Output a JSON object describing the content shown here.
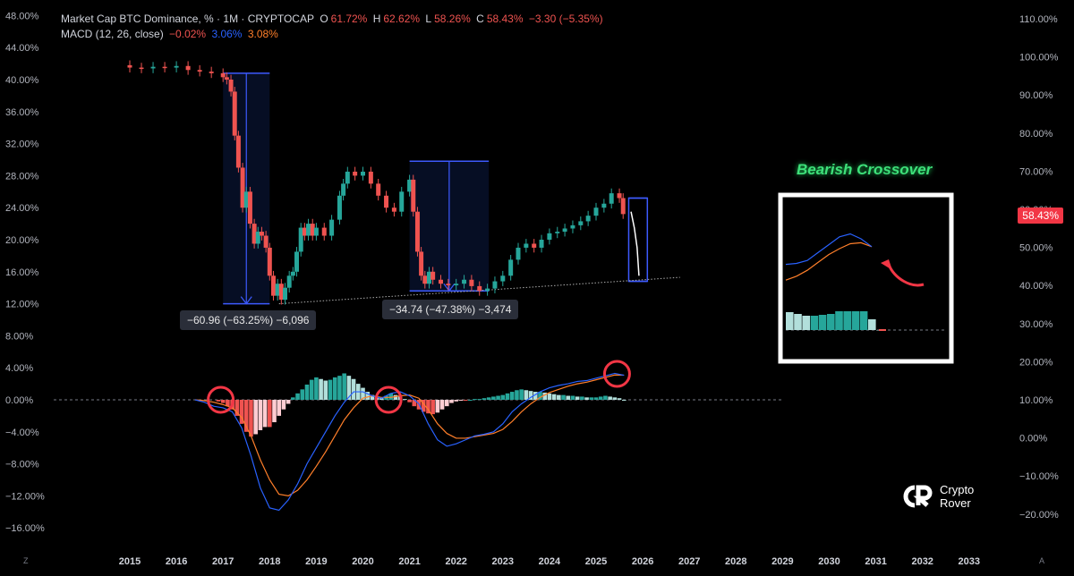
{
  "header": {
    "line1": {
      "title": "Market Cap BTC Dominance, % · 1M · CRYPTOCAP",
      "o_label": "O",
      "o_value": "61.72%",
      "h_label": "H",
      "h_value": "62.62%",
      "l_label": "L",
      "l_value": "58.26%",
      "c_label": "C",
      "c_value": "58.43%",
      "change": "−3.30 (−5.35%)"
    },
    "line2": {
      "title": "MACD (12, 26, close)",
      "v1": "−0.02%",
      "v2": "3.06%",
      "v3": "3.08%"
    }
  },
  "price_tag": "58.43%",
  "measure_labels": {
    "first": "−60.96 (−63.25%) −6,096",
    "second": "−34.74 (−47.38%) −3,474"
  },
  "annotation": "Bearish Crossover",
  "brand": {
    "line1": "Crypto",
    "line2": "Rover"
  },
  "corner_left": "Z",
  "corner_right": "A",
  "colors": {
    "up": "#26a69a",
    "down": "#ef5350",
    "macd": "#2962ff",
    "signal": "#ff7f2a",
    "hist_pos_strong": "#26a69a",
    "hist_pos_weak": "#b2dfdb",
    "hist_neg_strong": "#ef5350",
    "hist_neg_weak": "#ffcdd2",
    "box": "#3d5afe",
    "circle": "#f23645",
    "bearish": "#3ee07a"
  },
  "chart_data": {
    "type": "line",
    "x_ticks": [
      "2015",
      "2016",
      "2017",
      "2018",
      "2019",
      "2020",
      "2021",
      "2022",
      "2023",
      "2024",
      "2025",
      "2026",
      "2027",
      "2028",
      "2029",
      "2030",
      "2031",
      "2032",
      "2033"
    ],
    "left_axis_ticks": [
      "48.00%",
      "44.00%",
      "40.00%",
      "36.00%",
      "32.00%",
      "28.00%",
      "24.00%",
      "20.00%",
      "16.00%",
      "12.00%",
      "8.00%",
      "4.00%",
      "0.00%",
      "−4.00%",
      "−8.00%",
      "−12.00%",
      "−16.00%"
    ],
    "left_axis_values": [
      48,
      44,
      40,
      36,
      32,
      28,
      24,
      20,
      16,
      12,
      8,
      4,
      0,
      -4,
      -8,
      -12,
      -16
    ],
    "right_axis_ticks": [
      "110.00%",
      "100.00%",
      "90.00%",
      "80.00%",
      "70.00%",
      "60.00%",
      "50.00%",
      "40.00%",
      "30.00%",
      "20.00%",
      "10.00%",
      "0.00%",
      "−10.00%",
      "−20.00%"
    ],
    "right_axis_values": [
      110,
      100,
      90,
      80,
      70,
      60,
      50,
      40,
      30,
      20,
      10,
      0,
      -10,
      -20
    ],
    "dominance": {
      "name": "Market Cap BTC Dominance",
      "x": [
        2014.75,
        2015.0,
        2015.25,
        2015.5,
        2015.75,
        2016.0,
        2016.25,
        2016.5,
        2016.75,
        2017.0,
        2017.08,
        2017.17,
        2017.25,
        2017.33,
        2017.42,
        2017.5,
        2017.58,
        2017.67,
        2017.75,
        2017.83,
        2017.92,
        2018.0,
        2018.08,
        2018.17,
        2018.25,
        2018.33,
        2018.42,
        2018.5,
        2018.58,
        2018.67,
        2018.75,
        2018.83,
        2018.92,
        2019.0,
        2019.17,
        2019.33,
        2019.5,
        2019.58,
        2019.67,
        2019.83,
        2020.0,
        2020.17,
        2020.33,
        2020.5,
        2020.67,
        2020.83,
        2021.0,
        2021.08,
        2021.17,
        2021.25,
        2021.33,
        2021.42,
        2021.5,
        2021.67,
        2021.83,
        2022.0,
        2022.17,
        2022.33,
        2022.5,
        2022.67,
        2022.83,
        2023.0,
        2023.17,
        2023.33,
        2023.5,
        2023.67,
        2023.83,
        2024.0,
        2024.17,
        2024.33,
        2024.5,
        2024.67,
        2024.83,
        2025.0,
        2025.17,
        2025.33,
        2025.5,
        2025.58
      ],
      "values": [
        41.8,
        41.5,
        41.4,
        41.6,
        41.5,
        41.7,
        41.2,
        41.0,
        40.8,
        40.3,
        40.0,
        38.5,
        33.0,
        29.0,
        24.0,
        26.0,
        22.0,
        19.5,
        21.0,
        20.5,
        19.0,
        15.5,
        13.0,
        14.5,
        12.5,
        14.0,
        15.5,
        16.0,
        18.5,
        21.5,
        20.5,
        22.0,
        20.5,
        21.5,
        20.5,
        22.5,
        25.5,
        27.0,
        28.5,
        28.0,
        28.5,
        27.0,
        25.5,
        24.0,
        23.5,
        26.0,
        27.5,
        23.5,
        18.5,
        15.5,
        14.5,
        16.0,
        15.0,
        14.5,
        14.3,
        14.5,
        15.0,
        14.2,
        13.6,
        13.9,
        14.8,
        15.5,
        17.5,
        19.0,
        19.5,
        19.0,
        20.0,
        20.8,
        21.0,
        21.4,
        21.8,
        22.3,
        23.0,
        24.0,
        24.5,
        25.8,
        25.2,
        23.2
      ]
    },
    "projection": {
      "x": [
        2025.75,
        2025.82,
        2025.88,
        2025.92
      ],
      "values": [
        23.5,
        21.5,
        19.0,
        15.5
      ]
    },
    "trend_line": {
      "x": [
        2018.2,
        2026.8
      ],
      "values": [
        12.0,
        15.3
      ]
    },
    "measures": [
      {
        "x_start": 2017.0,
        "x_end": 2018.0,
        "top": 40.8,
        "bottom": 12.0
      },
      {
        "x_start": 2021.0,
        "x_end": 2022.7,
        "top": 29.8,
        "bottom": 13.6
      },
      {
        "x_start": 2025.7,
        "x_end": 2026.1,
        "top": 25.2,
        "bottom": 14.8
      }
    ],
    "macd": {
      "name": "MACD",
      "x": [
        2016.4,
        2016.6,
        2016.8,
        2017.0,
        2017.2,
        2017.4,
        2017.6,
        2017.8,
        2018.0,
        2018.2,
        2018.4,
        2018.6,
        2018.8,
        2019.0,
        2019.2,
        2019.4,
        2019.6,
        2019.8,
        2020.0,
        2020.2,
        2020.4,
        2020.6,
        2020.8,
        2021.0,
        2021.2,
        2021.4,
        2021.6,
        2021.8,
        2022.0,
        2022.2,
        2022.4,
        2022.6,
        2022.8,
        2023.0,
        2023.2,
        2023.4,
        2023.6,
        2023.8,
        2024.0,
        2024.2,
        2024.4,
        2024.6,
        2024.8,
        2025.0,
        2025.2,
        2025.4,
        2025.6
      ],
      "values": [
        0.0,
        -0.3,
        -0.8,
        -1.0,
        -1.5,
        -3.5,
        -7.0,
        -11.0,
        -13.5,
        -13.8,
        -12.5,
        -10.5,
        -8.0,
        -6.0,
        -4.0,
        -2.0,
        -0.3,
        1.0,
        1.0,
        0.5,
        0.2,
        0.8,
        1.0,
        0.5,
        -0.5,
        -3.0,
        -5.0,
        -5.8,
        -5.5,
        -5.0,
        -4.5,
        -4.3,
        -4.0,
        -3.0,
        -1.5,
        -0.5,
        0.3,
        1.0,
        1.5,
        1.8,
        2.0,
        2.3,
        2.4,
        2.7,
        3.0,
        3.3,
        3.06
      ]
    },
    "signal": {
      "name": "Signal",
      "x": [
        2016.4,
        2016.6,
        2016.8,
        2017.0,
        2017.2,
        2017.4,
        2017.6,
        2017.8,
        2018.0,
        2018.2,
        2018.4,
        2018.6,
        2018.8,
        2019.0,
        2019.2,
        2019.4,
        2019.6,
        2019.8,
        2020.0,
        2020.2,
        2020.4,
        2020.6,
        2020.8,
        2021.0,
        2021.2,
        2021.4,
        2021.6,
        2021.8,
        2022.0,
        2022.2,
        2022.4,
        2022.6,
        2022.8,
        2023.0,
        2023.2,
        2023.4,
        2023.6,
        2023.8,
        2024.0,
        2024.2,
        2024.4,
        2024.6,
        2024.8,
        2025.0,
        2025.2,
        2025.4,
        2025.6
      ],
      "values": [
        0.0,
        -0.1,
        -0.3,
        -0.6,
        -1.0,
        -2.2,
        -4.5,
        -7.5,
        -10.0,
        -11.8,
        -12.0,
        -11.3,
        -10.0,
        -8.3,
        -6.5,
        -4.5,
        -2.5,
        -1.0,
        0.2,
        0.5,
        0.3,
        0.3,
        0.5,
        0.6,
        0.2,
        -1.2,
        -3.0,
        -4.2,
        -4.8,
        -4.8,
        -4.6,
        -4.4,
        -4.2,
        -3.7,
        -2.7,
        -1.5,
        -0.5,
        0.3,
        0.9,
        1.3,
        1.7,
        2.0,
        2.2,
        2.5,
        2.8,
        3.1,
        3.08
      ]
    },
    "histogram": {
      "name": "Histogram",
      "x": [
        2016.9,
        2017.0,
        2017.1,
        2017.2,
        2017.3,
        2017.4,
        2017.5,
        2017.6,
        2017.7,
        2017.8,
        2017.9,
        2018.0,
        2018.1,
        2018.2,
        2018.3,
        2018.4,
        2018.5,
        2018.6,
        2018.7,
        2018.8,
        2018.9,
        2019.0,
        2019.1,
        2019.2,
        2019.3,
        2019.4,
        2019.5,
        2019.6,
        2019.7,
        2019.8,
        2019.9,
        2020.0,
        2020.1,
        2020.2,
        2020.3,
        2020.4,
        2020.5,
        2020.6,
        2020.7,
        2020.8,
        2020.9,
        2021.0,
        2021.1,
        2021.2,
        2021.3,
        2021.4,
        2021.5,
        2021.6,
        2021.7,
        2021.8,
        2021.9,
        2022.0,
        2022.1,
        2022.2,
        2022.3,
        2022.4,
        2022.5,
        2022.6,
        2022.7,
        2022.8,
        2022.9,
        2023.0,
        2023.1,
        2023.2,
        2023.3,
        2023.4,
        2023.5,
        2023.6,
        2023.7,
        2023.8,
        2023.9,
        2024.0,
        2024.1,
        2024.2,
        2024.3,
        2024.4,
        2024.5,
        2024.6,
        2024.7,
        2024.8,
        2024.9,
        2025.0,
        2025.1,
        2025.2,
        2025.3,
        2025.4,
        2025.5,
        2025.6
      ],
      "values": [
        -0.2,
        -0.4,
        -0.8,
        -1.2,
        -2.0,
        -3.0,
        -4.0,
        -4.6,
        -4.3,
        -3.8,
        -3.4,
        -3.4,
        -2.8,
        -2.0,
        -1.2,
        -0.5,
        0.3,
        0.8,
        1.3,
        1.9,
        2.5,
        2.8,
        2.6,
        2.4,
        2.5,
        2.8,
        3.0,
        3.3,
        3.0,
        2.6,
        2.0,
        1.5,
        1.0,
        0.6,
        0.3,
        0.2,
        0.5,
        0.8,
        0.6,
        0.4,
        0.1,
        -0.3,
        -0.8,
        -1.2,
        -1.5,
        -1.7,
        -1.8,
        -1.6,
        -1.2,
        -0.8,
        -0.4,
        -0.2,
        -0.1,
        -0.1,
        0.0,
        0.1,
        0.1,
        0.2,
        0.3,
        0.4,
        0.5,
        0.6,
        0.8,
        1.0,
        1.2,
        1.3,
        1.2,
        1.1,
        1.0,
        1.0,
        0.9,
        0.8,
        0.7,
        0.6,
        0.6,
        0.5,
        0.5,
        0.4,
        0.4,
        0.3,
        0.3,
        0.3,
        0.4,
        0.5,
        0.4,
        0.3,
        0.2,
        0.0
      ]
    },
    "crossover_circles_x": [
      2016.95,
      2020.55,
      2025.45
    ],
    "inset": {
      "macd": [
        0.2,
        0.25,
        0.4,
        0.8,
        1.2,
        1.6,
        1.75,
        1.5,
        1.1
      ],
      "signal": [
        -0.6,
        -0.4,
        -0.1,
        0.3,
        0.7,
        1.0,
        1.25,
        1.3,
        1.1
      ],
      "histogram": [
        1.0,
        0.9,
        0.8,
        0.8,
        0.85,
        0.9,
        1.05,
        1.05,
        1.05,
        1.05,
        0.6,
        0.0
      ]
    }
  }
}
